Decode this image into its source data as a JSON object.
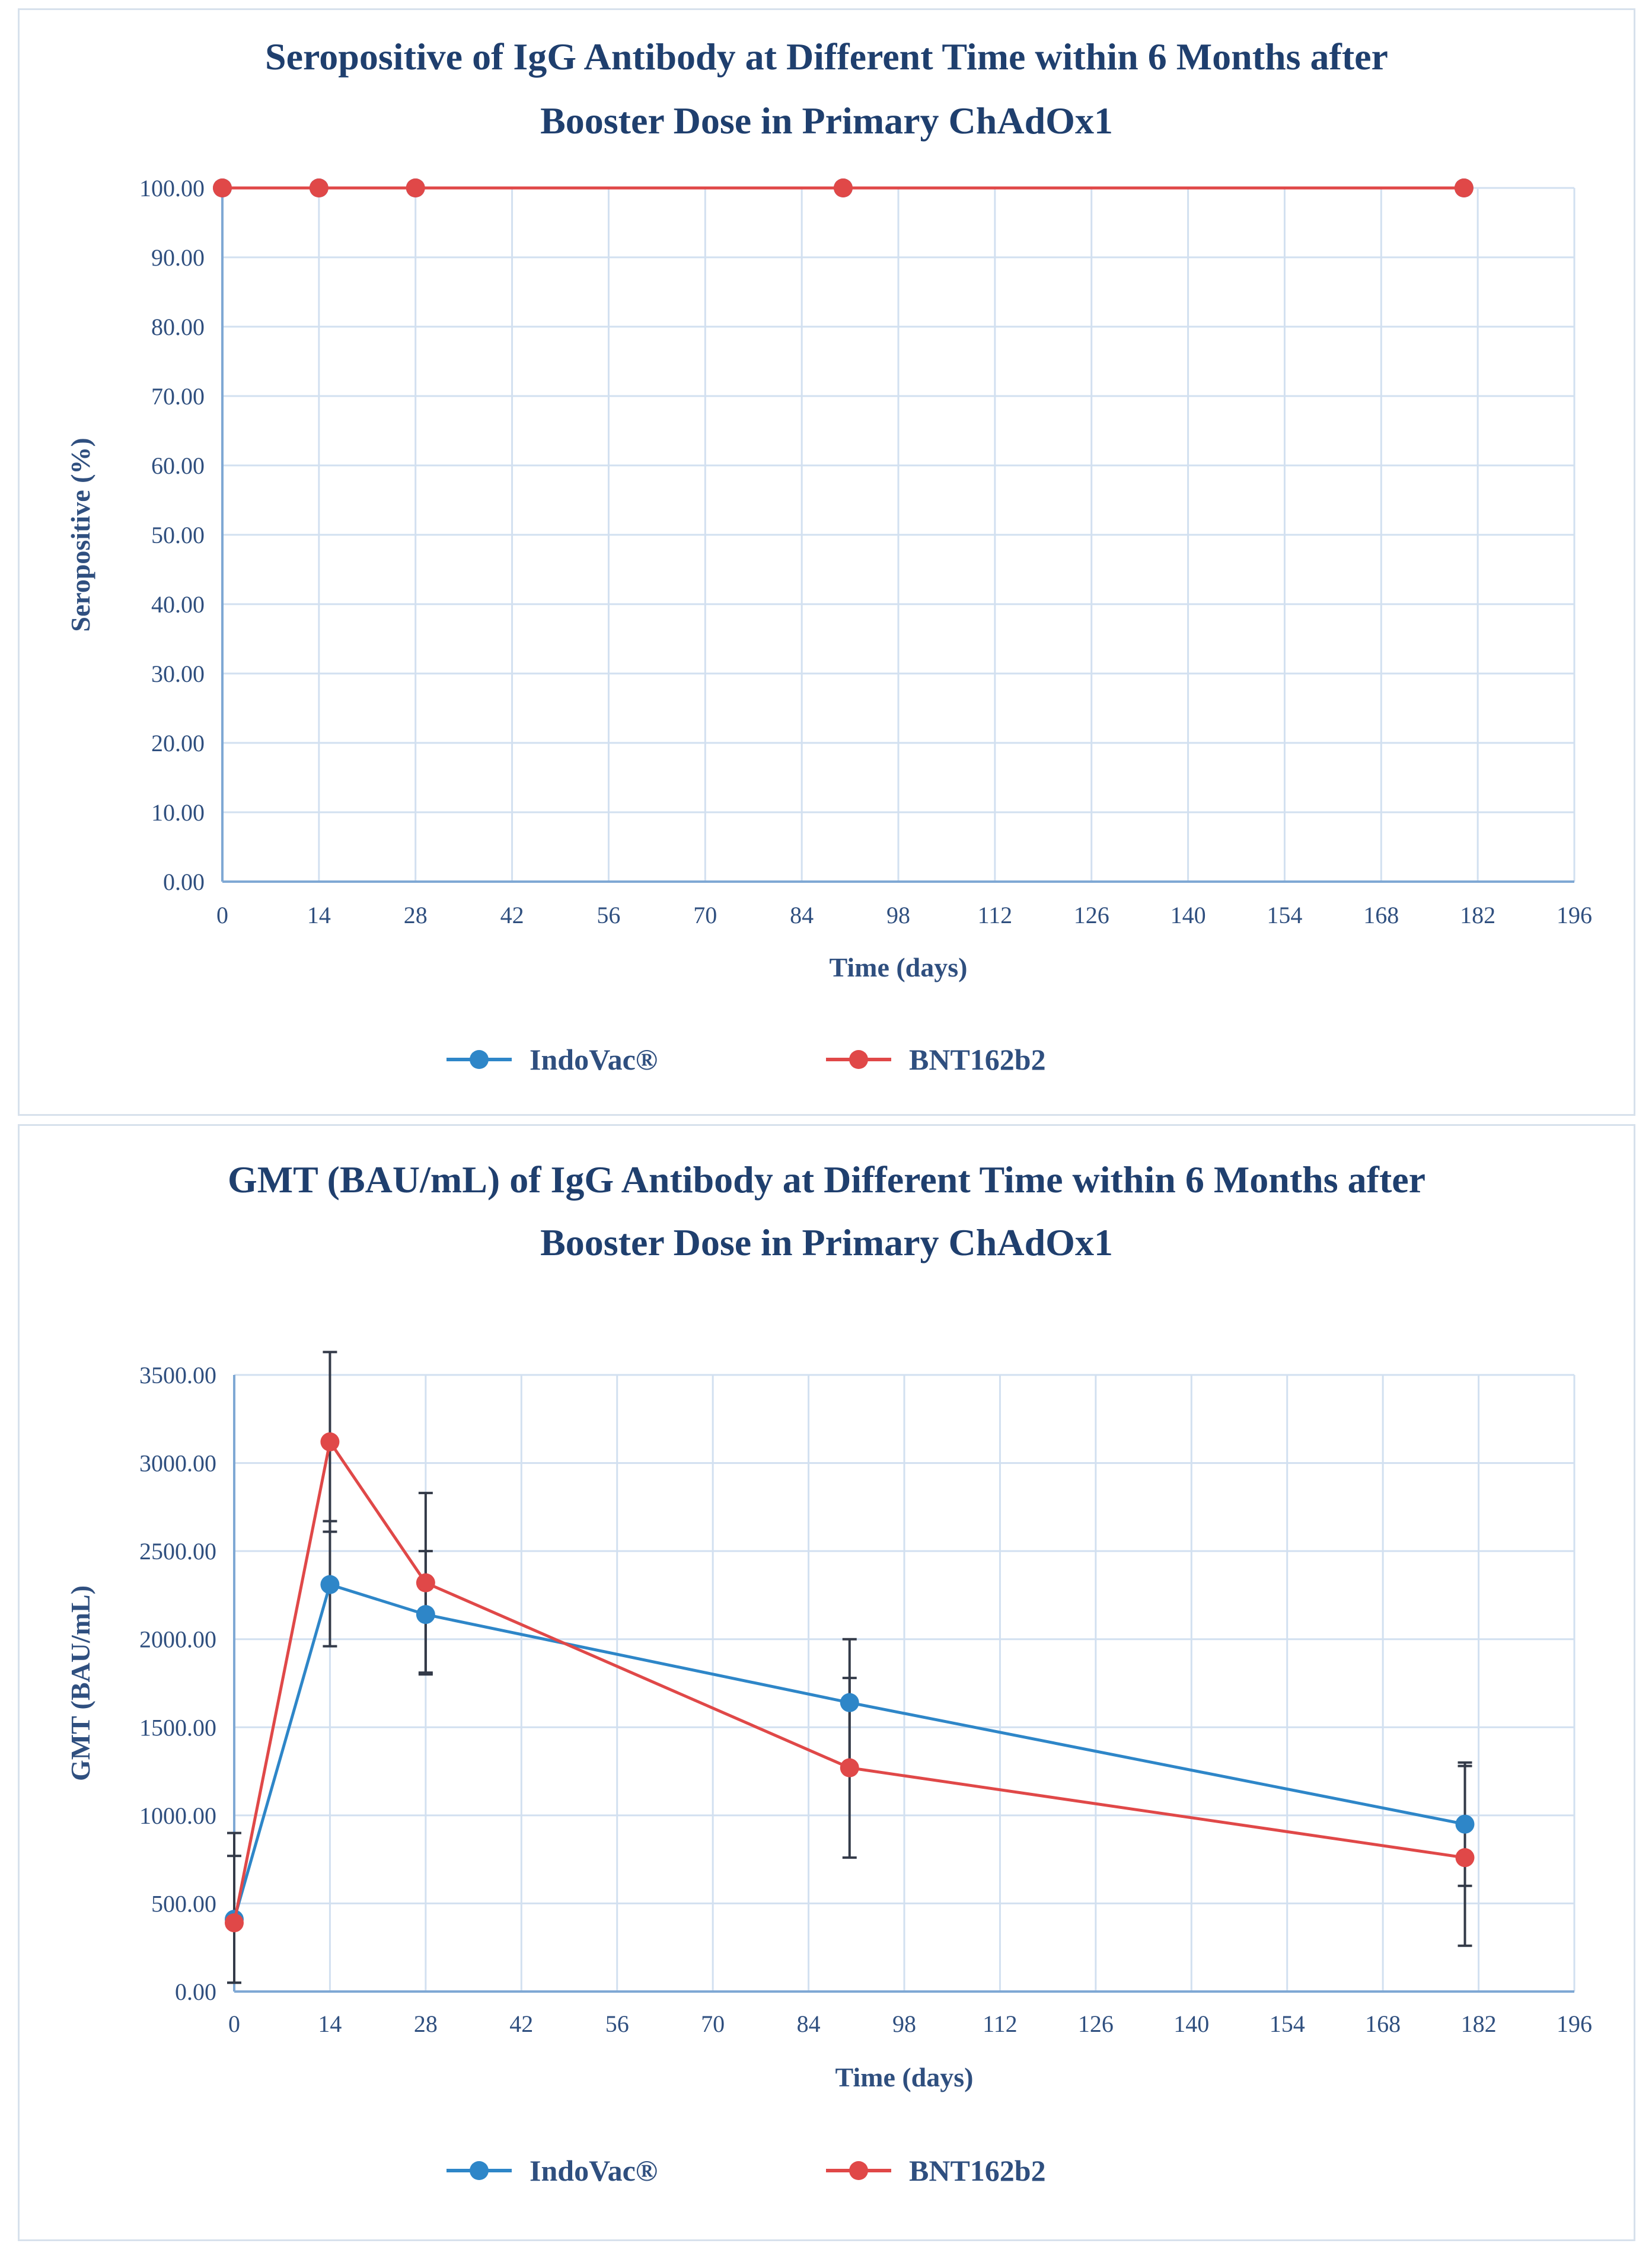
{
  "chart_data": [
    {
      "type": "line",
      "title_lines": [
        "Seropositive of IgG Antibody at Different Time within 6 Months after",
        "Booster Dose in Primary ChAdOx1"
      ],
      "xlabel": "Time (days)",
      "ylabel": "Seropositive (%)",
      "xlim": [
        0,
        196
      ],
      "ylim": [
        0,
        100
      ],
      "x_ticks": [
        0,
        14,
        28,
        42,
        56,
        70,
        84,
        98,
        112,
        126,
        140,
        154,
        168,
        182,
        196
      ],
      "y_ticks": [
        "0.00",
        "10.00",
        "20.00",
        "30.00",
        "40.00",
        "50.00",
        "60.00",
        "70.00",
        "80.00",
        "90.00",
        "100.00"
      ],
      "grid": true,
      "legend_position": "bottom",
      "series": [
        {
          "name": "IndoVac®",
          "color": "#2e86c8",
          "x": [
            0,
            14,
            28,
            90,
            180
          ],
          "y": [
            100,
            100,
            100,
            100,
            100
          ]
        },
        {
          "name": "BNT162b2",
          "color": "#e04848",
          "x": [
            0,
            14,
            28,
            90,
            180
          ],
          "y": [
            100,
            100,
            100,
            100,
            100
          ]
        }
      ]
    },
    {
      "type": "line",
      "title_lines": [
        "GMT (BAU/mL) of IgG Antibody at Different Time within 6 Months after",
        "Booster Dose in Primary ChAdOx1"
      ],
      "xlabel": "Time (days)",
      "ylabel": "GMT (BAU/mL)",
      "xlim": [
        0,
        196
      ],
      "ylim": [
        0,
        3500
      ],
      "x_ticks": [
        0,
        14,
        28,
        42,
        56,
        70,
        84,
        98,
        112,
        126,
        140,
        154,
        168,
        182,
        196
      ],
      "y_ticks": [
        "0.00",
        "500.00",
        "1000.00",
        "1500.00",
        "2000.00",
        "2500.00",
        "3000.00",
        "3500.00"
      ],
      "grid": true,
      "legend_position": "bottom",
      "series": [
        {
          "name": "IndoVac®",
          "color": "#2e86c8",
          "x": [
            0,
            14,
            28,
            90,
            180
          ],
          "y": [
            410,
            2310,
            2140,
            1640,
            950
          ],
          "err_low": [
            50,
            1960,
            1800,
            1280,
            600
          ],
          "err_high": [
            770,
            2670,
            2500,
            2000,
            1300
          ]
        },
        {
          "name": "BNT162b2",
          "color": "#e04848",
          "x": [
            0,
            14,
            28,
            90,
            180
          ],
          "y": [
            390,
            3120,
            2320,
            1270,
            760
          ],
          "err_low": [
            50,
            2610,
            1810,
            760,
            260
          ],
          "err_high": [
            900,
            3630,
            2830,
            1780,
            1280
          ]
        }
      ]
    }
  ]
}
